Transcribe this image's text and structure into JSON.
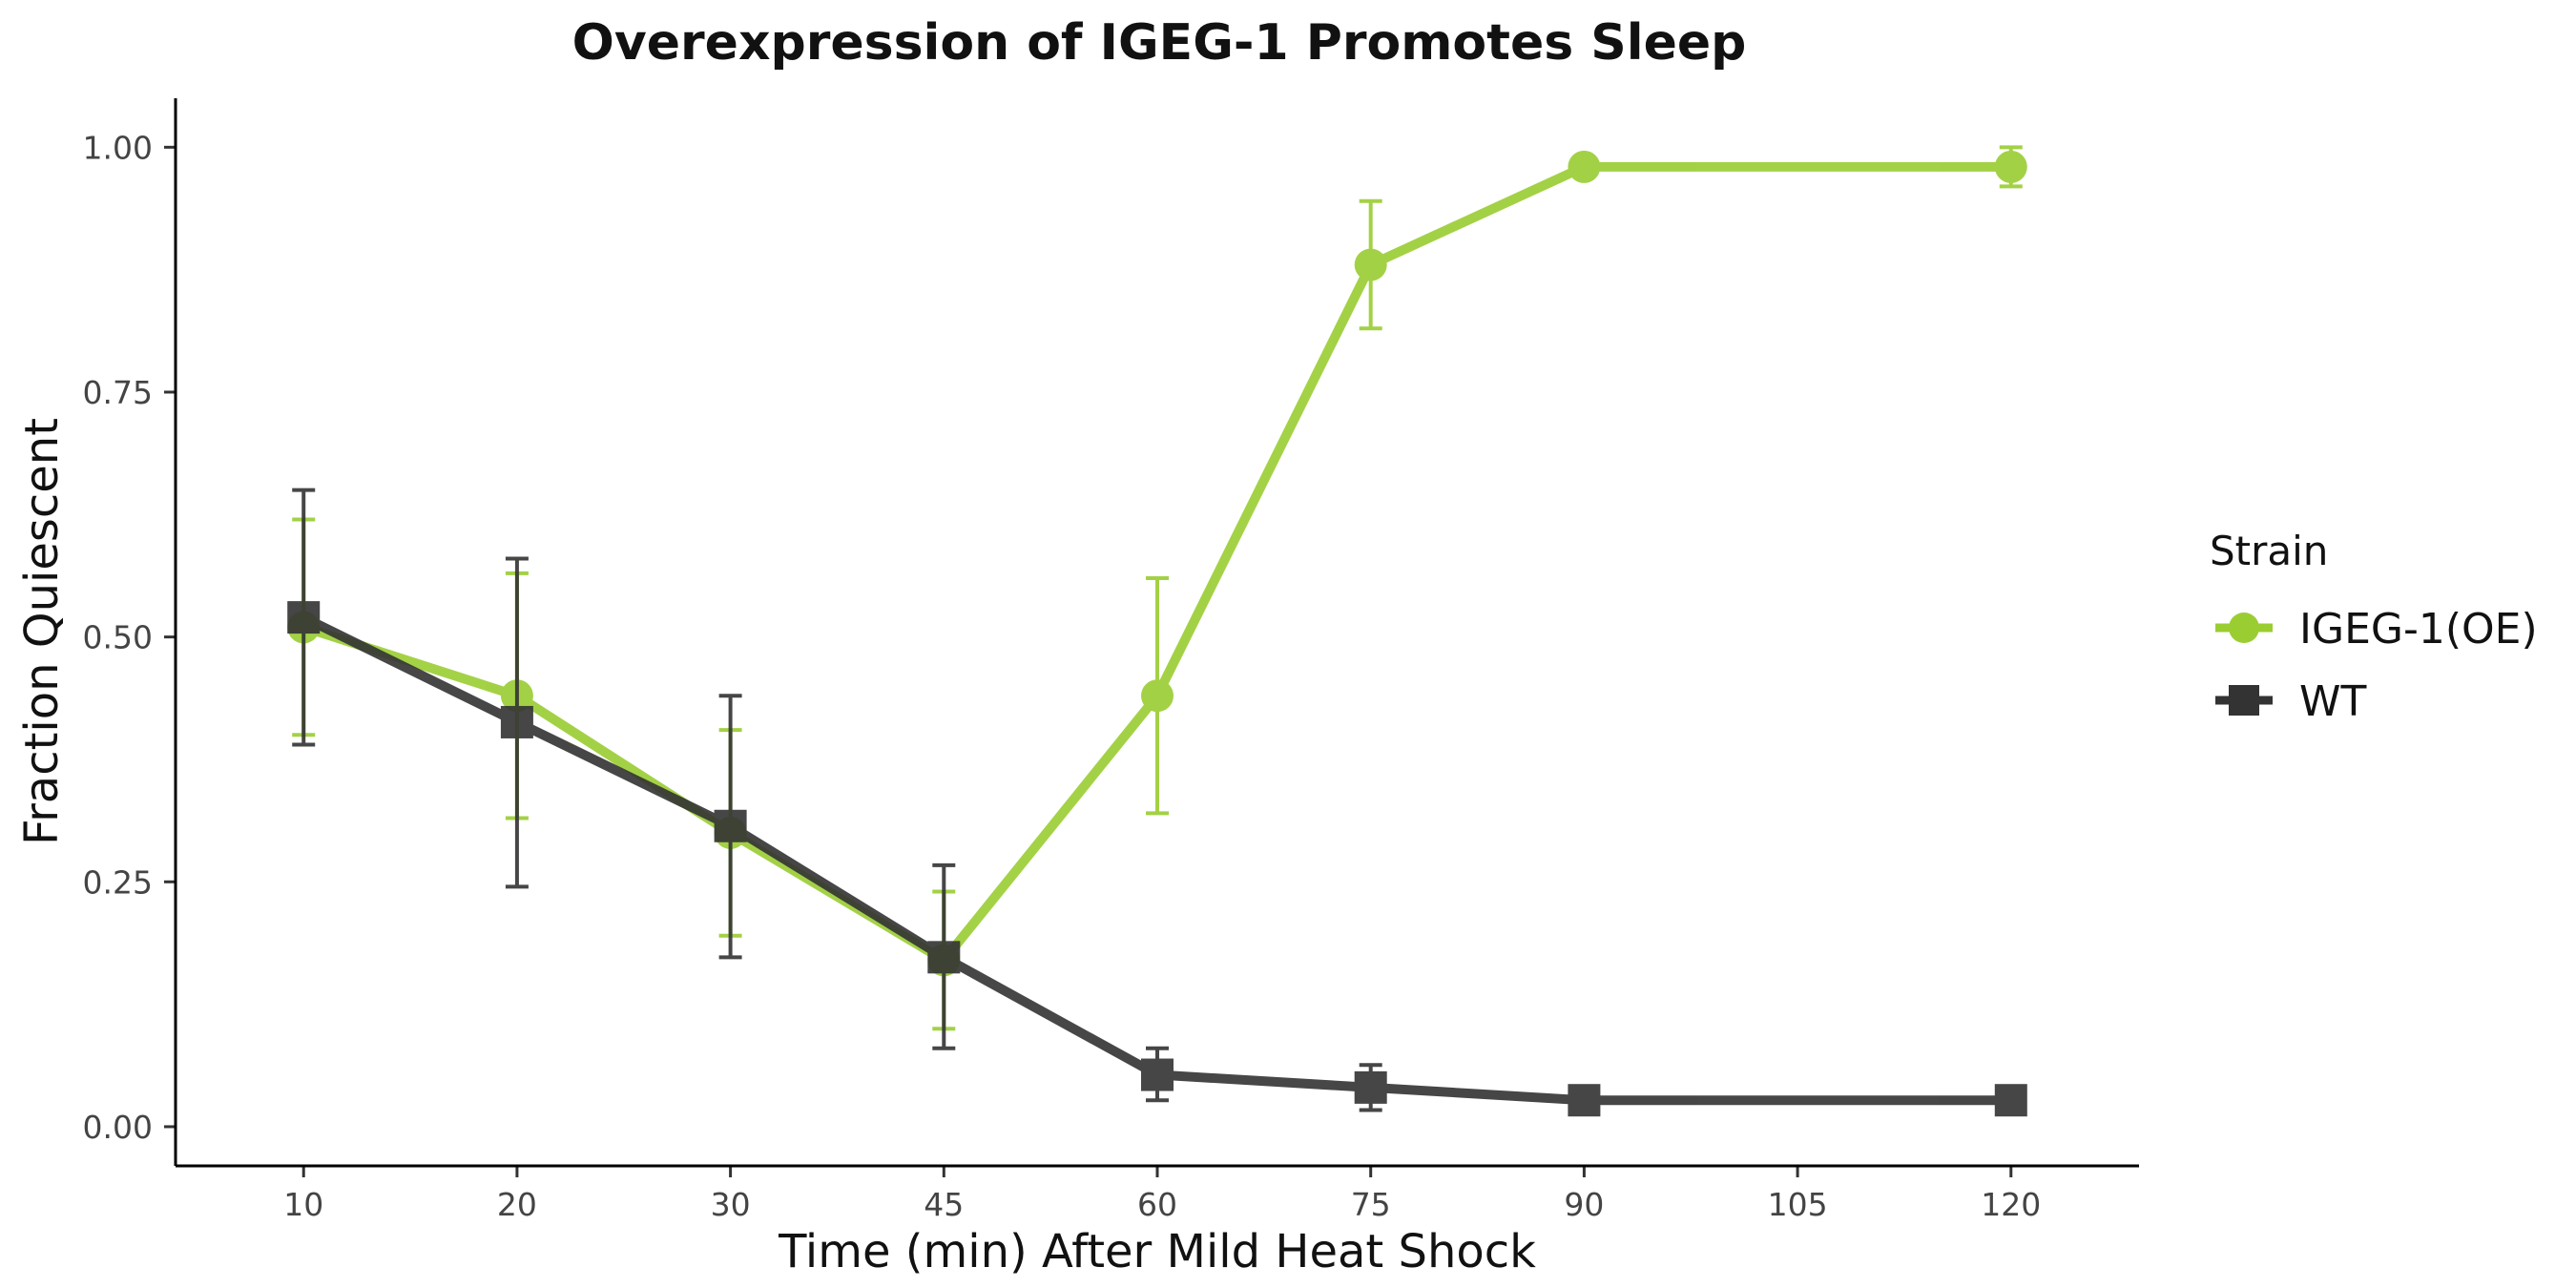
{
  "chart_data": {
    "type": "line",
    "title": "Overexpression of IGEG-1 Promotes Sleep",
    "xlabel": "Time (min) After Mild Heat Shock",
    "ylabel": "Fraction Quiescent",
    "categories": [
      "10",
      "20",
      "30",
      "45",
      "60",
      "75",
      "90",
      "105",
      "120"
    ],
    "x_tick_labels": [
      "10",
      "20",
      "30",
      "45",
      "60",
      "75",
      "90",
      "105",
      "120"
    ],
    "y_tick_labels": [
      "0.00",
      "0.25",
      "0.50",
      "0.75",
      "1.00"
    ],
    "y_ticks": [
      0,
      0.25,
      0.5,
      0.75,
      1.0
    ],
    "ylim": [
      -0.04,
      1.05
    ],
    "grid": false,
    "legend": {
      "title": "Strain",
      "position": "right"
    },
    "series": [
      {
        "name": "IGEG-1(OE)",
        "color": "#9ACD32",
        "marker": "circle",
        "x": [
          "10",
          "20",
          "30",
          "45",
          "60",
          "75",
          "90",
          "120"
        ],
        "values": [
          0.51,
          0.44,
          0.3,
          0.17,
          0.44,
          0.88,
          0.98,
          0.98
        ],
        "error_low": [
          0.4,
          0.315,
          0.195,
          0.1,
          0.32,
          0.815,
          0.975,
          0.96
        ],
        "error_high": [
          0.62,
          0.565,
          0.405,
          0.24,
          0.56,
          0.945,
          0.985,
          1.0
        ]
      },
      {
        "name": "WT",
        "color": "#333333",
        "marker": "square",
        "x": [
          "10",
          "20",
          "30",
          "45",
          "60",
          "75",
          "90",
          "120"
        ],
        "values": [
          0.52,
          0.413,
          0.307,
          0.173,
          0.053,
          0.04,
          0.027,
          0.027
        ],
        "error_low": [
          0.39,
          0.245,
          0.173,
          0.08,
          0.027,
          0.017,
          0.027,
          0.027
        ],
        "error_high": [
          0.65,
          0.58,
          0.44,
          0.267,
          0.08,
          0.063,
          0.027,
          0.027
        ]
      }
    ]
  }
}
